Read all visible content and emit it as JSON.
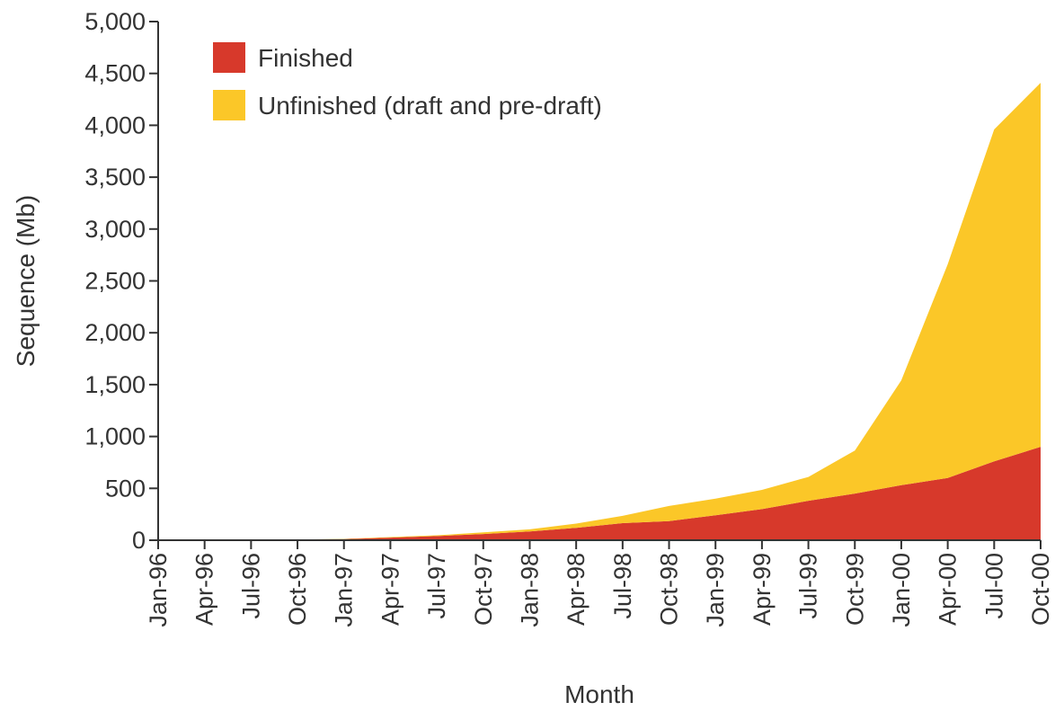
{
  "chart_data": {
    "type": "area",
    "stacked": true,
    "title": "",
    "xlabel": "Month",
    "ylabel": "Sequence (Mb)",
    "ylim": [
      0,
      5000
    ],
    "yticks": [
      0,
      500,
      1000,
      1500,
      2000,
      2500,
      3000,
      3500,
      4000,
      4500,
      5000
    ],
    "ytick_labels": [
      "0",
      "500",
      "1,000",
      "1,500",
      "2,000",
      "2,500",
      "3,000",
      "3,500",
      "4,000",
      "4,500",
      "5,000"
    ],
    "categories": [
      "Jan-96",
      "Apr-96",
      "Jul-96",
      "Oct-96",
      "Jan-97",
      "Apr-97",
      "Jul-97",
      "Oct-97",
      "Jan-98",
      "Apr-98",
      "Jul-98",
      "Oct-98",
      "Jan-99",
      "Apr-99",
      "Jul-99",
      "Oct-99",
      "Jan-00",
      "Apr-00",
      "Jul-00",
      "Oct-00"
    ],
    "grid": false,
    "legend_position": "top-left",
    "series": [
      {
        "name": "Finished",
        "color": "#d7392b",
        "values": [
          0,
          2,
          4,
          6,
          10,
          25,
          40,
          60,
          85,
          120,
          165,
          185,
          240,
          300,
          380,
          450,
          530,
          600,
          760,
          900
        ]
      },
      {
        "name": "Unfinished (draft and pre-draft)",
        "color": "#fbc728",
        "values": [
          0,
          0,
          0,
          1,
          3,
          5,
          8,
          15,
          20,
          40,
          70,
          145,
          160,
          185,
          230,
          415,
          1010,
          2060,
          3200,
          3510
        ]
      }
    ]
  }
}
